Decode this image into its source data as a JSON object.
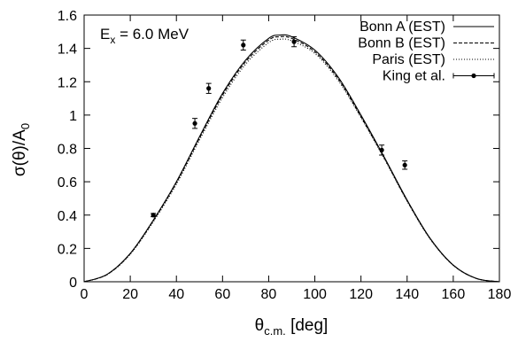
{
  "chart_data": {
    "type": "line",
    "annotation": {
      "main": "E",
      "sub": "x",
      "rest": " = 6.0 MeV"
    },
    "xlabel": {
      "main": "θ",
      "sub": "c.m.",
      "rest": " [deg]"
    },
    "ylabel": {
      "main": "σ(θ)/A",
      "sub": "0"
    },
    "xlim": [
      0,
      180
    ],
    "ylim": [
      0,
      1.6
    ],
    "xticks": [
      "0",
      "20",
      "40",
      "60",
      "80",
      "100",
      "120",
      "140",
      "160",
      "180"
    ],
    "yticks": [
      "0",
      "0.2",
      "0.4",
      "0.6",
      "0.8",
      "1",
      "1.2",
      "1.4",
      "1.6"
    ],
    "grid": false,
    "legend_position": "top-right",
    "series": [
      {
        "name": "Bonn A (EST)",
        "style": "solid",
        "x": [
          0,
          10,
          20,
          30,
          40,
          50,
          60,
          70,
          80,
          85,
          90,
          100,
          110,
          120,
          130,
          140,
          150,
          160,
          170,
          180
        ],
        "y": [
          0,
          0.045,
          0.17,
          0.37,
          0.6,
          0.87,
          1.13,
          1.33,
          1.46,
          1.48,
          1.47,
          1.39,
          1.23,
          1.0,
          0.75,
          0.49,
          0.26,
          0.1,
          0.02,
          0
        ]
      },
      {
        "name": "Bonn B (EST)",
        "style": "dashed",
        "x": [
          0,
          10,
          20,
          30,
          40,
          50,
          60,
          70,
          80,
          85,
          90,
          100,
          110,
          120,
          130,
          140,
          150,
          160,
          170,
          180
        ],
        "y": [
          0,
          0.044,
          0.168,
          0.366,
          0.595,
          0.862,
          1.12,
          1.32,
          1.45,
          1.47,
          1.46,
          1.38,
          1.22,
          0.99,
          0.745,
          0.486,
          0.258,
          0.099,
          0.02,
          0
        ]
      },
      {
        "name": "Paris (EST)",
        "style": "dotted",
        "x": [
          0,
          10,
          20,
          30,
          40,
          50,
          60,
          70,
          80,
          85,
          90,
          100,
          110,
          120,
          130,
          140,
          150,
          160,
          170,
          180
        ],
        "y": [
          0,
          0.043,
          0.165,
          0.36,
          0.585,
          0.85,
          1.105,
          1.305,
          1.435,
          1.455,
          1.445,
          1.37,
          1.21,
          0.985,
          0.74,
          0.483,
          0.256,
          0.098,
          0.02,
          0
        ]
      },
      {
        "name": "King et al.",
        "style": "points",
        "x": [
          30,
          48,
          54,
          69,
          91,
          129,
          139
        ],
        "y": [
          0.4,
          0.95,
          1.16,
          1.42,
          1.44,
          0.79,
          0.7
        ],
        "err": [
          0.01,
          0.03,
          0.03,
          0.03,
          0.03,
          0.03,
          0.025
        ]
      }
    ]
  }
}
